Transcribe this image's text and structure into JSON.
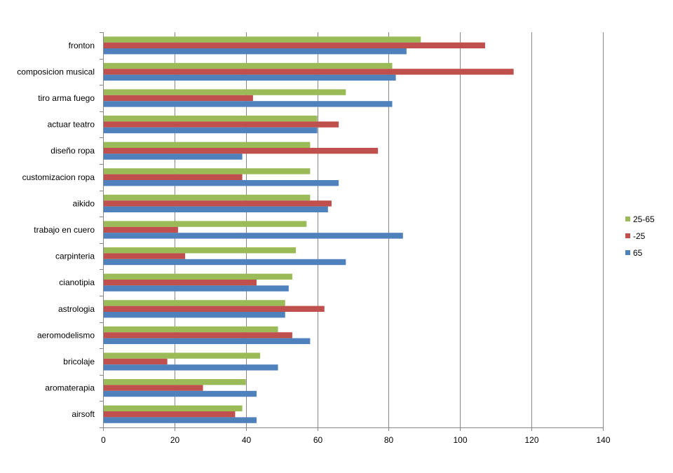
{
  "chart_data": {
    "type": "bar",
    "orientation": "horizontal",
    "categories": [
      "fronton",
      "composicion musical",
      "tiro arma fuego",
      "actuar teatro",
      "diseño ropa",
      "customizacion ropa",
      "aikido",
      "trabajo en cuero",
      "carpinteria",
      "cianotipia",
      "astrologia",
      "aeromodelismo",
      "bricolaje",
      "aromaterapia",
      "airsoft"
    ],
    "series": [
      {
        "name": "25-65",
        "color": "#9bbb59",
        "values": [
          89,
          81,
          68,
          60,
          58,
          58,
          58,
          57,
          54,
          53,
          51,
          49,
          44,
          40,
          39
        ]
      },
      {
        "name": "-25",
        "color": "#c0504d",
        "values": [
          107,
          115,
          42,
          66,
          77,
          39,
          64,
          21,
          23,
          43,
          62,
          53,
          18,
          28,
          37
        ]
      },
      {
        "name": "65",
        "color": "#4f81bd",
        "values": [
          85,
          82,
          81,
          60,
          39,
          66,
          63,
          84,
          68,
          52,
          51,
          58,
          49,
          43,
          43
        ]
      }
    ],
    "xlim": [
      0,
      140
    ],
    "xticks": [
      "0",
      "20",
      "40",
      "60",
      "80",
      "100",
      "120",
      "140"
    ],
    "grid": "vertical major gridlines",
    "legend": "right",
    "legend_entries": [
      "25-65",
      "-25",
      "65"
    ],
    "title": "",
    "xlabel": "",
    "ylabel": ""
  }
}
